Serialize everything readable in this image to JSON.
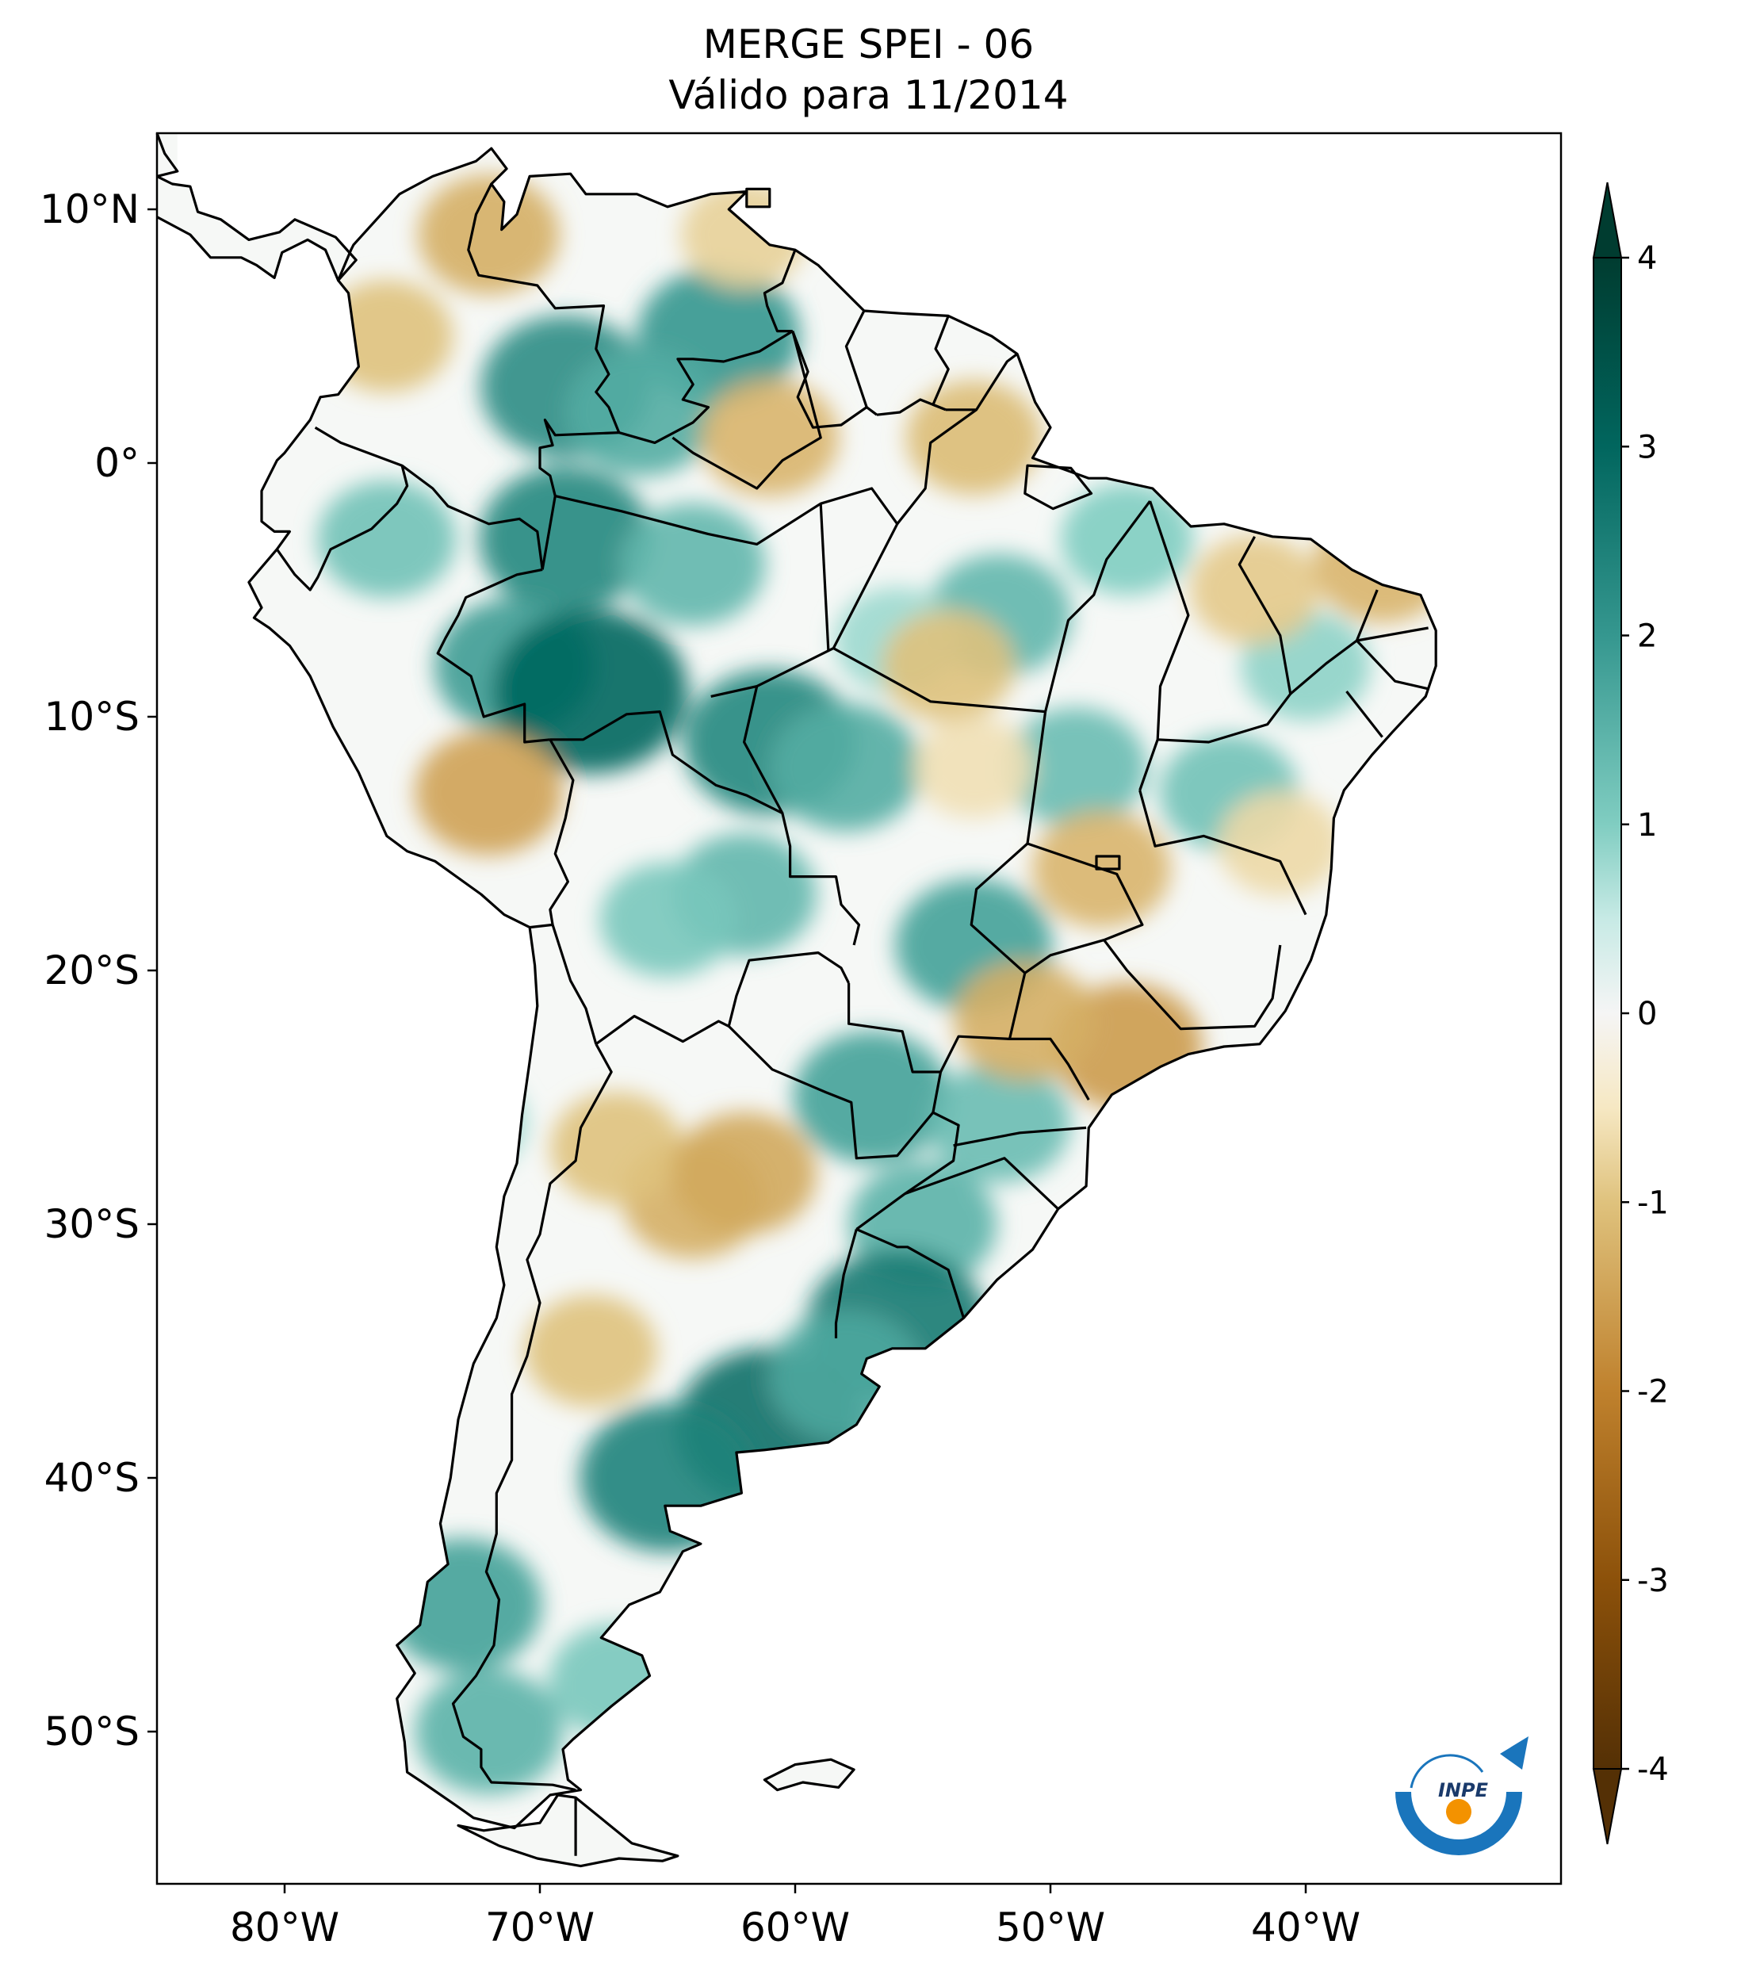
{
  "title": {
    "line1": "MERGE   SPEI - 06",
    "line2": "Válido para 11/2014"
  },
  "map": {
    "region": "South America",
    "projection": "PlateCarree",
    "lon_range": [
      -85,
      -30
    ],
    "lat_range": [
      -56,
      13
    ],
    "lat_ticks": [
      {
        "value": 10,
        "label": "10°N"
      },
      {
        "value": 0,
        "label": "0°"
      },
      {
        "value": -10,
        "label": "10°S"
      },
      {
        "value": -20,
        "label": "20°S"
      },
      {
        "value": -30,
        "label": "30°S"
      },
      {
        "value": -40,
        "label": "40°S"
      },
      {
        "value": -50,
        "label": "50°S"
      }
    ],
    "lon_ticks": [
      {
        "value": -80,
        "label": "80°W"
      },
      {
        "value": -70,
        "label": "70°W"
      },
      {
        "value": -60,
        "label": "60°W"
      },
      {
        "value": -50,
        "label": "50°W"
      },
      {
        "value": -40,
        "label": "40°W"
      }
    ],
    "colors": {
      "boundary": "#000000",
      "frame": "#000000",
      "ocean": "#ffffff",
      "neutral_land": "#f6f8f6"
    },
    "patches": [
      {
        "lon": -69,
        "lat": 3,
        "value": 2.2
      },
      {
        "lon": -63,
        "lat": 5,
        "value": 2.0
      },
      {
        "lon": -66,
        "lat": 2,
        "value": 1.6
      },
      {
        "lon": -69,
        "lat": -3,
        "value": 2.3
      },
      {
        "lon": -64,
        "lat": -4,
        "value": 1.4
      },
      {
        "lon": -71,
        "lat": -8,
        "value": 1.9
      },
      {
        "lon": -68,
        "lat": -9,
        "value": 3.0
      },
      {
        "lon": -76,
        "lat": -3,
        "value": 1.2
      },
      {
        "lon": -61,
        "lat": -11,
        "value": 2.3
      },
      {
        "lon": -58,
        "lat": -12,
        "value": 1.6
      },
      {
        "lon": -52,
        "lat": -6,
        "value": 1.4
      },
      {
        "lon": -47,
        "lat": -3,
        "value": 1.0
      },
      {
        "lon": -56,
        "lat": -7,
        "value": 0.8
      },
      {
        "lon": -53,
        "lat": -19,
        "value": 1.8
      },
      {
        "lon": -62,
        "lat": -17,
        "value": 1.4
      },
      {
        "lon": -65,
        "lat": -18,
        "value": 1.1
      },
      {
        "lon": -57,
        "lat": -25,
        "value": 1.8
      },
      {
        "lon": -52,
        "lat": -26,
        "value": 1.3
      },
      {
        "lon": -55,
        "lat": -30,
        "value": 1.5
      },
      {
        "lon": -56,
        "lat": -34,
        "value": 2.6
      },
      {
        "lon": -61,
        "lat": -38,
        "value": 2.8
      },
      {
        "lon": -65,
        "lat": -40,
        "value": 2.4
      },
      {
        "lon": -58,
        "lat": -36,
        "value": 1.7
      },
      {
        "lon": -73,
        "lat": -45,
        "value": 1.8
      },
      {
        "lon": -72,
        "lat": -50,
        "value": 1.5
      },
      {
        "lon": -67,
        "lat": -48,
        "value": 1.1
      },
      {
        "lon": -43,
        "lat": -13,
        "value": 1.2
      },
      {
        "lon": -49,
        "lat": -12,
        "value": 1.3
      },
      {
        "lon": -40,
        "lat": -8,
        "value": 0.9
      },
      {
        "lon": -73,
        "lat": -26,
        "value": 0.8
      },
      {
        "lon": -64,
        "lat": -29,
        "value": -1.3
      },
      {
        "lon": -67,
        "lat": -27,
        "value": -1.0
      },
      {
        "lon": -68,
        "lat": -35,
        "value": -1.0
      },
      {
        "lon": -62,
        "lat": -28,
        "value": -1.4
      },
      {
        "lon": -72,
        "lat": 9,
        "value": -1.3
      },
      {
        "lon": -76,
        "lat": 5,
        "value": -1.0
      },
      {
        "lon": -62,
        "lat": 9,
        "value": -0.8
      },
      {
        "lon": -61,
        "lat": 1,
        "value": -1.2
      },
      {
        "lon": -53,
        "lat": 1,
        "value": -1.1
      },
      {
        "lon": -72,
        "lat": -13,
        "value": -1.5
      },
      {
        "lon": -47,
        "lat": -23,
        "value": -1.6
      },
      {
        "lon": -51,
        "lat": -22,
        "value": -1.3
      },
      {
        "lon": -48,
        "lat": -16,
        "value": -1.2
      },
      {
        "lon": -42,
        "lat": -5,
        "value": -0.9
      },
      {
        "lon": -37,
        "lat": -4,
        "value": -1.2
      },
      {
        "lon": -54,
        "lat": -8,
        "value": -1.0
      },
      {
        "lon": -41,
        "lat": -15,
        "value": -0.7
      },
      {
        "lon": -53,
        "lat": -12,
        "value": -0.6
      }
    ]
  },
  "colorbar": {
    "min": -4,
    "max": 4,
    "extend": "both",
    "ticks": [
      {
        "value": 4,
        "label": "4"
      },
      {
        "value": 3,
        "label": "3"
      },
      {
        "value": 2,
        "label": "2"
      },
      {
        "value": 1,
        "label": "1"
      },
      {
        "value": 0,
        "label": "0"
      },
      {
        "value": -1,
        "label": "-1"
      },
      {
        "value": -2,
        "label": "-2"
      },
      {
        "value": -3,
        "label": "-3"
      },
      {
        "value": -4,
        "label": "-4"
      }
    ],
    "stops": [
      {
        "value": -4,
        "color": "#543005"
      },
      {
        "value": -3,
        "color": "#8c510a"
      },
      {
        "value": -2,
        "color": "#bf812d"
      },
      {
        "value": -1,
        "color": "#dfc27d"
      },
      {
        "value": -0.5,
        "color": "#f6e8c3"
      },
      {
        "value": 0,
        "color": "#f5f5f5"
      },
      {
        "value": 0.5,
        "color": "#c7eae5"
      },
      {
        "value": 1,
        "color": "#80cdc1"
      },
      {
        "value": 2,
        "color": "#35978f"
      },
      {
        "value": 3,
        "color": "#01665e"
      },
      {
        "value": 4,
        "color": "#003c30"
      }
    ]
  },
  "logo": {
    "text": "INPE",
    "colors": {
      "arc": "#1a75bc",
      "dot": "#f39200"
    }
  }
}
